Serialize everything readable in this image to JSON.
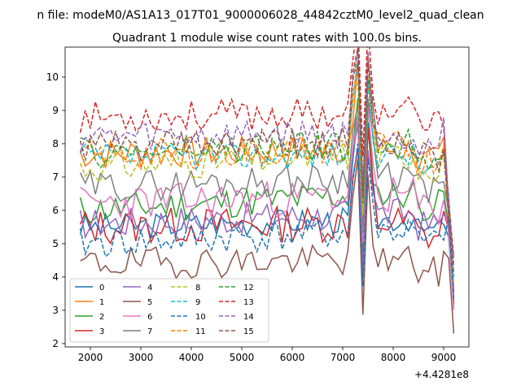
{
  "suptitle": "n file: modeM0/AS1A13_017T01_9000006028_44842cztM0_level2_quad_clean",
  "chart_data": {
    "type": "line",
    "title": "Quadrant 1 module wise count rates with 100.0s bins.",
    "xlabel": "",
    "ylabel": "",
    "x_offset_label": "+4.4281e8",
    "xlim": [
      1500,
      9500
    ],
    "ylim": [
      1.9,
      10.9
    ],
    "xticks": [
      2000,
      3000,
      4000,
      5000,
      6000,
      7000,
      8000,
      9000
    ],
    "yticks": [
      2,
      3,
      4,
      5,
      6,
      7,
      8,
      9,
      10
    ],
    "legend_position": "lower-left",
    "series": [
      {
        "name": "0",
        "color": "#1f77b4",
        "dash": "solid",
        "base": 5.5,
        "amp": 0.25,
        "slope": 0.04,
        "drop": 3.1,
        "seed": 3
      },
      {
        "name": "1",
        "color": "#ff7f0e",
        "dash": "solid",
        "base": 7.7,
        "amp": 0.3,
        "slope": 0.02,
        "drop": 3.5,
        "seed": 7
      },
      {
        "name": "2",
        "color": "#2ca02c",
        "dash": "solid",
        "base": 6.0,
        "amp": 0.3,
        "slope": 0.08,
        "drop": 3.3,
        "seed": 11
      },
      {
        "name": "3",
        "color": "#d62728",
        "dash": "solid",
        "base": 5.5,
        "amp": 0.35,
        "slope": 0.02,
        "drop": 3.2,
        "seed": 13
      },
      {
        "name": "4",
        "color": "#9467bd",
        "dash": "solid",
        "base": 5.6,
        "amp": 0.3,
        "slope": 0.05,
        "drop": 3.4,
        "seed": 17
      },
      {
        "name": "5",
        "color": "#8c564b",
        "dash": "solid",
        "base": 4.4,
        "amp": 0.3,
        "slope": 0.02,
        "drop": 2.3,
        "seed": 19
      },
      {
        "name": "6",
        "color": "#e377c2",
        "dash": "solid",
        "base": 6.2,
        "amp": 0.35,
        "slope": 0.04,
        "drop": 3.0,
        "seed": 23
      },
      {
        "name": "7",
        "color": "#7f7f7f",
        "dash": "solid",
        "base": 6.7,
        "amp": 0.3,
        "slope": 0.05,
        "drop": 3.6,
        "seed": 29
      },
      {
        "name": "8",
        "color": "#bcbd22",
        "dash": "dashed",
        "base": 7.3,
        "amp": 0.3,
        "slope": 0.06,
        "drop": 3.8,
        "seed": 31
      },
      {
        "name": "9",
        "color": "#17becf",
        "dash": "dashed",
        "base": 7.6,
        "amp": 0.25,
        "slope": 0.01,
        "drop": 4.0,
        "seed": 37
      },
      {
        "name": "10",
        "color": "#1f77b4",
        "dash": "dashed",
        "base": 5.0,
        "amp": 0.3,
        "slope": 0.06,
        "drop": 3.3,
        "seed": 41
      },
      {
        "name": "11",
        "color": "#ff7f0e",
        "dash": "dashed",
        "base": 7.6,
        "amp": 0.3,
        "slope": 0.05,
        "drop": 4.3,
        "seed": 43
      },
      {
        "name": "12",
        "color": "#2ca02c",
        "dash": "dashed",
        "base": 7.7,
        "amp": 0.3,
        "slope": 0.05,
        "drop": 4.5,
        "seed": 47
      },
      {
        "name": "13",
        "color": "#d62728",
        "dash": "dashed",
        "base": 8.8,
        "amp": 0.3,
        "slope": 0.02,
        "drop": 4.6,
        "seed": 53
      },
      {
        "name": "14",
        "color": "#9467bd",
        "dash": "dashed",
        "base": 8.2,
        "amp": 0.3,
        "slope": 0.02,
        "drop": 4.4,
        "seed": 59
      },
      {
        "name": "15",
        "color": "#8c564b",
        "dash": "dashed",
        "base": 7.9,
        "amp": 0.3,
        "slope": 0.02,
        "drop": 4.1,
        "seed": 61
      }
    ]
  }
}
